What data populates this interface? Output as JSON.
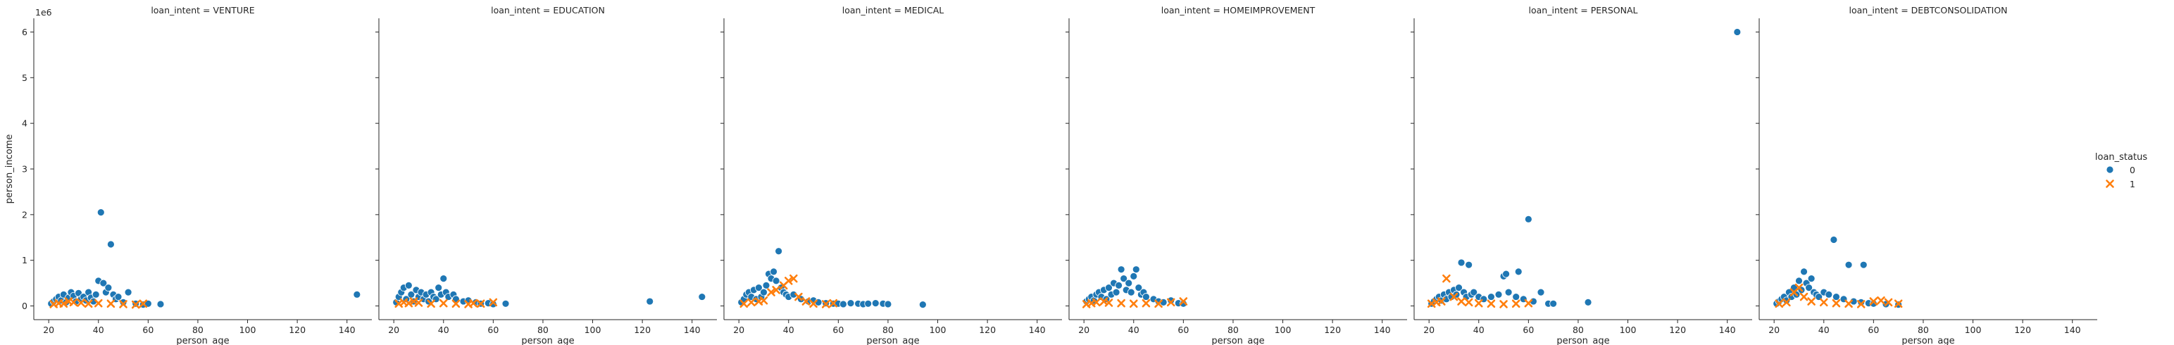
{
  "chart_data": {
    "type": "scatter",
    "x_label": "person_age",
    "y_label": "person_income",
    "y_offset_label": "1e6",
    "x_ticks": [
      20,
      40,
      60,
      80,
      100,
      120,
      140
    ],
    "y_ticks": [
      0,
      1,
      2,
      3,
      4,
      5,
      6
    ],
    "xlim": [
      14,
      150
    ],
    "ylim": [
      -0.3,
      6.3
    ],
    "legend": {
      "title": "loan_status",
      "placement": "right",
      "entries": [
        {
          "label": "0",
          "marker": "circle",
          "color": "#1f77b4"
        },
        {
          "label": "1",
          "marker": "x",
          "color": "#ff7f0e"
        }
      ]
    },
    "facets": [
      {
        "title": "loan_intent = VENTURE",
        "status_0": [
          [
            21,
            0.05
          ],
          [
            22,
            0.1
          ],
          [
            23,
            0.15
          ],
          [
            24,
            0.2
          ],
          [
            25,
            0.12
          ],
          [
            26,
            0.25
          ],
          [
            27,
            0.08
          ],
          [
            28,
            0.18
          ],
          [
            29,
            0.3
          ],
          [
            30,
            0.22
          ],
          [
            31,
            0.1
          ],
          [
            32,
            0.28
          ],
          [
            33,
            0.15
          ],
          [
            34,
            0.2
          ],
          [
            35,
            0.12
          ],
          [
            36,
            0.3
          ],
          [
            37,
            0.18
          ],
          [
            38,
            0.1
          ],
          [
            39,
            0.25
          ],
          [
            40,
            0.55
          ],
          [
            41,
            2.05
          ],
          [
            42,
            0.5
          ],
          [
            43,
            0.3
          ],
          [
            44,
            0.4
          ],
          [
            45,
            1.35
          ],
          [
            46,
            0.25
          ],
          [
            47,
            0.15
          ],
          [
            48,
            0.2
          ],
          [
            50,
            0.08
          ],
          [
            52,
            0.3
          ],
          [
            55,
            0.05
          ],
          [
            58,
            0.03
          ],
          [
            60,
            0.05
          ],
          [
            65,
            0.04
          ],
          [
            144,
            0.25
          ]
        ],
        "status_1": [
          [
            22,
            0.04
          ],
          [
            24,
            0.06
          ],
          [
            26,
            0.05
          ],
          [
            28,
            0.1
          ],
          [
            30,
            0.08
          ],
          [
            33,
            0.07
          ],
          [
            36,
            0.05
          ],
          [
            40,
            0.06
          ],
          [
            45,
            0.05
          ],
          [
            50,
            0.04
          ],
          [
            55,
            0.03
          ],
          [
            58,
            0.05
          ]
        ]
      },
      {
        "title": "loan_intent = EDUCATION",
        "status_0": [
          [
            21,
            0.08
          ],
          [
            22,
            0.2
          ],
          [
            23,
            0.3
          ],
          [
            24,
            0.4
          ],
          [
            25,
            0.15
          ],
          [
            26,
            0.45
          ],
          [
            27,
            0.25
          ],
          [
            28,
            0.1
          ],
          [
            29,
            0.35
          ],
          [
            30,
            0.2
          ],
          [
            31,
            0.3
          ],
          [
            32,
            0.15
          ],
          [
            33,
            0.25
          ],
          [
            34,
            0.1
          ],
          [
            35,
            0.3
          ],
          [
            36,
            0.2
          ],
          [
            37,
            0.15
          ],
          [
            38,
            0.4
          ],
          [
            39,
            0.25
          ],
          [
            40,
            0.6
          ],
          [
            41,
            0.3
          ],
          [
            42,
            0.2
          ],
          [
            44,
            0.25
          ],
          [
            45,
            0.15
          ],
          [
            48,
            0.1
          ],
          [
            50,
            0.12
          ],
          [
            53,
            0.08
          ],
          [
            55,
            0.05
          ],
          [
            58,
            0.06
          ],
          [
            60,
            0.04
          ],
          [
            65,
            0.05
          ],
          [
            123,
            0.1
          ],
          [
            144,
            0.2
          ]
        ],
        "status_1": [
          [
            22,
            0.05
          ],
          [
            24,
            0.08
          ],
          [
            26,
            0.06
          ],
          [
            28,
            0.1
          ],
          [
            30,
            0.07
          ],
          [
            35,
            0.05
          ],
          [
            40,
            0.06
          ],
          [
            45,
            0.05
          ],
          [
            50,
            0.04
          ],
          [
            52,
            0.06
          ],
          [
            55,
            0.05
          ],
          [
            60,
            0.08
          ]
        ]
      },
      {
        "title": "loan_intent = MEDICAL",
        "status_0": [
          [
            21,
            0.08
          ],
          [
            22,
            0.15
          ],
          [
            23,
            0.25
          ],
          [
            24,
            0.3
          ],
          [
            25,
            0.2
          ],
          [
            26,
            0.35
          ],
          [
            27,
            0.15
          ],
          [
            28,
            0.4
          ],
          [
            29,
            0.2
          ],
          [
            30,
            0.3
          ],
          [
            31,
            0.45
          ],
          [
            32,
            0.7
          ],
          [
            33,
            0.6
          ],
          [
            34,
            0.75
          ],
          [
            35,
            0.55
          ],
          [
            36,
            1.2
          ],
          [
            37,
            0.4
          ],
          [
            38,
            0.3
          ],
          [
            39,
            0.25
          ],
          [
            40,
            0.2
          ],
          [
            42,
            0.25
          ],
          [
            45,
            0.15
          ],
          [
            48,
            0.1
          ],
          [
            50,
            0.12
          ],
          [
            52,
            0.08
          ],
          [
            55,
            0.06
          ],
          [
            58,
            0.05
          ],
          [
            60,
            0.05
          ],
          [
            62,
            0.04
          ],
          [
            65,
            0.06
          ],
          [
            68,
            0.05
          ],
          [
            70,
            0.04
          ],
          [
            72,
            0.05
          ],
          [
            75,
            0.06
          ],
          [
            78,
            0.05
          ],
          [
            80,
            0.04
          ],
          [
            94,
            0.03
          ]
        ],
        "status_1": [
          [
            22,
            0.05
          ],
          [
            25,
            0.08
          ],
          [
            28,
            0.1
          ],
          [
            30,
            0.12
          ],
          [
            33,
            0.3
          ],
          [
            35,
            0.35
          ],
          [
            38,
            0.45
          ],
          [
            40,
            0.55
          ],
          [
            42,
            0.6
          ],
          [
            44,
            0.2
          ],
          [
            47,
            0.1
          ],
          [
            50,
            0.05
          ],
          [
            55,
            0.04
          ],
          [
            58,
            0.06
          ]
        ]
      },
      {
        "title": "loan_intent = HOMEIMPROVEMENT",
        "status_0": [
          [
            21,
            0.1
          ],
          [
            22,
            0.15
          ],
          [
            23,
            0.2
          ],
          [
            24,
            0.12
          ],
          [
            25,
            0.25
          ],
          [
            26,
            0.3
          ],
          [
            27,
            0.2
          ],
          [
            28,
            0.35
          ],
          [
            29,
            0.15
          ],
          [
            30,
            0.4
          ],
          [
            31,
            0.25
          ],
          [
            32,
            0.5
          ],
          [
            33,
            0.3
          ],
          [
            34,
            0.45
          ],
          [
            35,
            0.8
          ],
          [
            36,
            0.6
          ],
          [
            37,
            0.35
          ],
          [
            38,
            0.5
          ],
          [
            39,
            0.3
          ],
          [
            40,
            0.65
          ],
          [
            41,
            0.8
          ],
          [
            42,
            0.4
          ],
          [
            43,
            0.25
          ],
          [
            44,
            0.3
          ],
          [
            45,
            0.2
          ],
          [
            48,
            0.15
          ],
          [
            50,
            0.1
          ],
          [
            52,
            0.08
          ],
          [
            55,
            0.12
          ],
          [
            58,
            0.06
          ],
          [
            60,
            0.05
          ]
        ],
        "status_1": [
          [
            21,
            0.04
          ],
          [
            23,
            0.06
          ],
          [
            25,
            0.08
          ],
          [
            28,
            0.1
          ],
          [
            30,
            0.07
          ],
          [
            35,
            0.06
          ],
          [
            40,
            0.05
          ],
          [
            45,
            0.06
          ],
          [
            50,
            0.05
          ],
          [
            55,
            0.08
          ],
          [
            60,
            0.1
          ]
        ]
      },
      {
        "title": "loan_intent = PERSONAL",
        "status_0": [
          [
            21,
            0.05
          ],
          [
            22,
            0.1
          ],
          [
            23,
            0.15
          ],
          [
            24,
            0.2
          ],
          [
            25,
            0.12
          ],
          [
            26,
            0.25
          ],
          [
            27,
            0.15
          ],
          [
            28,
            0.3
          ],
          [
            29,
            0.2
          ],
          [
            30,
            0.35
          ],
          [
            31,
            0.25
          ],
          [
            32,
            0.4
          ],
          [
            33,
            0.95
          ],
          [
            34,
            0.3
          ],
          [
            35,
            0.2
          ],
          [
            36,
            0.9
          ],
          [
            37,
            0.25
          ],
          [
            38,
            0.3
          ],
          [
            40,
            0.2
          ],
          [
            42,
            0.15
          ],
          [
            45,
            0.2
          ],
          [
            48,
            0.25
          ],
          [
            50,
            0.65
          ],
          [
            51,
            0.7
          ],
          [
            52,
            0.3
          ],
          [
            55,
            0.2
          ],
          [
            56,
            0.75
          ],
          [
            58,
            0.15
          ],
          [
            60,
            1.9
          ],
          [
            62,
            0.1
          ],
          [
            65,
            0.3
          ],
          [
            68,
            0.05
          ],
          [
            70,
            0.05
          ],
          [
            84,
            0.08
          ],
          [
            144,
            6.0
          ]
        ],
        "status_1": [
          [
            21,
            0.05
          ],
          [
            23,
            0.08
          ],
          [
            25,
            0.1
          ],
          [
            27,
            0.6
          ],
          [
            30,
            0.2
          ],
          [
            33,
            0.1
          ],
          [
            36,
            0.08
          ],
          [
            40,
            0.06
          ],
          [
            45,
            0.05
          ],
          [
            50,
            0.04
          ],
          [
            55,
            0.05
          ],
          [
            60,
            0.06
          ]
        ]
      },
      {
        "title": "loan_intent = DEBTCONSOLIDATION",
        "status_0": [
          [
            21,
            0.05
          ],
          [
            22,
            0.1
          ],
          [
            23,
            0.15
          ],
          [
            24,
            0.2
          ],
          [
            25,
            0.12
          ],
          [
            26,
            0.3
          ],
          [
            27,
            0.2
          ],
          [
            28,
            0.4
          ],
          [
            29,
            0.25
          ],
          [
            30,
            0.55
          ],
          [
            31,
            0.35
          ],
          [
            32,
            0.75
          ],
          [
            33,
            0.5
          ],
          [
            34,
            0.4
          ],
          [
            35,
            0.6
          ],
          [
            36,
            0.3
          ],
          [
            37,
            0.25
          ],
          [
            38,
            0.2
          ],
          [
            40,
            0.3
          ],
          [
            42,
            0.25
          ],
          [
            44,
            1.45
          ],
          [
            45,
            0.2
          ],
          [
            48,
            0.15
          ],
          [
            50,
            0.9
          ],
          [
            52,
            0.1
          ],
          [
            55,
            0.08
          ],
          [
            56,
            0.9
          ],
          [
            58,
            0.06
          ],
          [
            60,
            0.05
          ],
          [
            65,
            0.04
          ],
          [
            70,
            0.03
          ]
        ],
        "status_1": [
          [
            22,
            0.05
          ],
          [
            25,
            0.08
          ],
          [
            28,
            0.3
          ],
          [
            30,
            0.4
          ],
          [
            32,
            0.2
          ],
          [
            35,
            0.1
          ],
          [
            40,
            0.08
          ],
          [
            45,
            0.06
          ],
          [
            50,
            0.05
          ],
          [
            55,
            0.04
          ],
          [
            60,
            0.1
          ],
          [
            63,
            0.12
          ],
          [
            66,
            0.08
          ],
          [
            70,
            0.05
          ]
        ]
      }
    ]
  }
}
